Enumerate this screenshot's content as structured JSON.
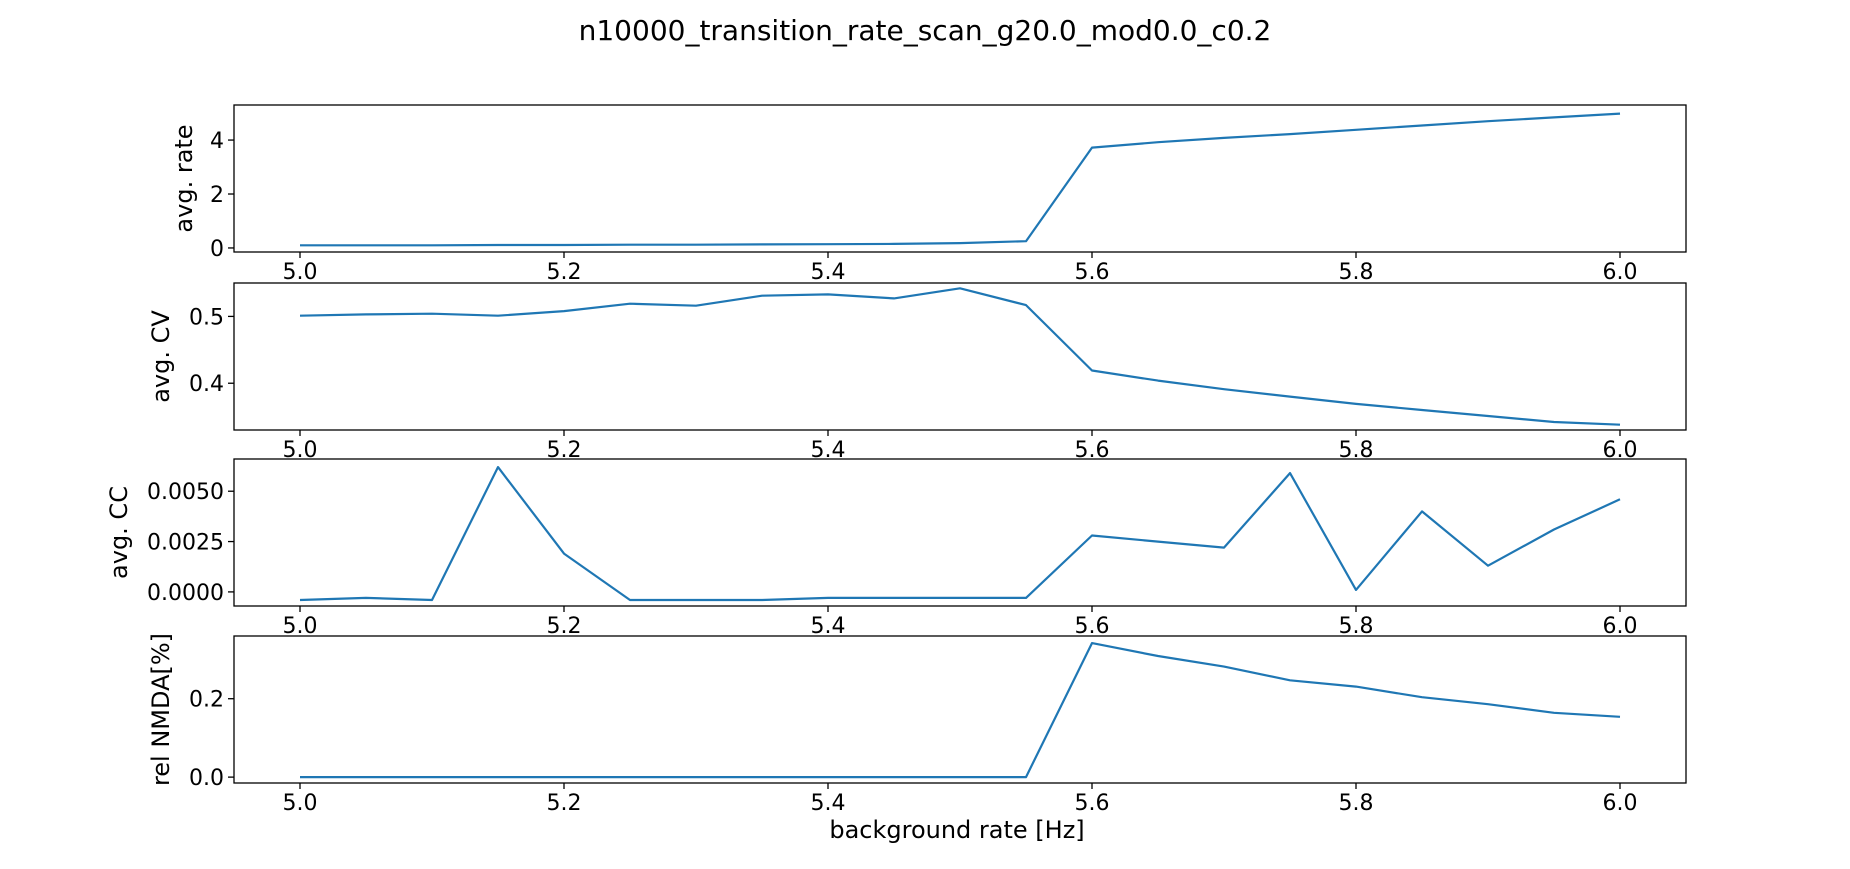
{
  "title": "n10000_transition_rate_scan_g20.0_mod0.0_c0.2",
  "xlabel": "background rate [Hz]",
  "colors": {
    "line": "#1f77b4",
    "axes": "#000000",
    "background": "#ffffff"
  },
  "chart_data": [
    {
      "type": "line",
      "ylabel": "avg. rate",
      "xlim": [
        4.95,
        6.05
      ],
      "ylim": [
        -0.15,
        5.3
      ],
      "grid": false,
      "xticks": [
        "5.0",
        "5.2",
        "5.4",
        "5.6",
        "5.8",
        "6.0"
      ],
      "yticks": [
        "0",
        "2",
        "4"
      ],
      "x": [
        5.0,
        5.05,
        5.1,
        5.15,
        5.2,
        5.25,
        5.3,
        5.35,
        5.4,
        5.45,
        5.5,
        5.55,
        5.6,
        5.65,
        5.7,
        5.75,
        5.8,
        5.85,
        5.9,
        5.95,
        6.0
      ],
      "y": [
        0.1,
        0.1,
        0.1,
        0.11,
        0.11,
        0.12,
        0.12,
        0.13,
        0.14,
        0.15,
        0.18,
        0.25,
        3.72,
        3.92,
        4.08,
        4.22,
        4.38,
        4.54,
        4.7,
        4.84,
        4.98
      ]
    },
    {
      "type": "line",
      "ylabel": "avg. CV",
      "xlim": [
        4.95,
        6.05
      ],
      "ylim": [
        0.33,
        0.55
      ],
      "grid": false,
      "xticks": [
        "5.0",
        "5.2",
        "5.4",
        "5.6",
        "5.8",
        "6.0"
      ],
      "yticks": [
        "0.4",
        "0.5"
      ],
      "x": [
        5.0,
        5.05,
        5.1,
        5.15,
        5.2,
        5.25,
        5.3,
        5.35,
        5.4,
        5.45,
        5.5,
        5.55,
        5.6,
        5.65,
        5.7,
        5.75,
        5.8,
        5.85,
        5.9,
        5.95,
        6.0
      ],
      "y": [
        0.501,
        0.503,
        0.504,
        0.501,
        0.508,
        0.519,
        0.516,
        0.531,
        0.533,
        0.527,
        0.542,
        0.517,
        0.419,
        0.404,
        0.391,
        0.38,
        0.369,
        0.36,
        0.351,
        0.342,
        0.338
      ]
    },
    {
      "type": "line",
      "ylabel": "avg. CC",
      "xlim": [
        4.95,
        6.05
      ],
      "ylim": [
        -0.0007,
        0.0066
      ],
      "grid": false,
      "xticks": [
        "5.0",
        "5.2",
        "5.4",
        "5.6",
        "5.8",
        "6.0"
      ],
      "yticks": [
        "0.0000",
        "0.0025",
        "0.0050"
      ],
      "x": [
        5.0,
        5.05,
        5.1,
        5.15,
        5.2,
        5.25,
        5.3,
        5.35,
        5.4,
        5.45,
        5.5,
        5.55,
        5.6,
        5.65,
        5.7,
        5.75,
        5.8,
        5.85,
        5.9,
        5.95,
        6.0
      ],
      "y": [
        -0.0004,
        -0.0003,
        -0.0004,
        0.0062,
        0.0019,
        -0.0004,
        -0.0004,
        -0.0004,
        -0.0003,
        -0.0003,
        -0.0003,
        -0.0003,
        0.0028,
        0.0025,
        0.0022,
        0.0059,
        0.0001,
        0.004,
        0.0013,
        0.0031,
        0.0046
      ]
    },
    {
      "type": "line",
      "ylabel": "rel NMDA[%]",
      "xlim": [
        4.95,
        6.05
      ],
      "ylim": [
        -0.015,
        0.36
      ],
      "grid": false,
      "xticks": [
        "5.0",
        "5.2",
        "5.4",
        "5.6",
        "5.8",
        "6.0"
      ],
      "yticks": [
        "0.0",
        "0.2"
      ],
      "x": [
        5.0,
        5.05,
        5.1,
        5.15,
        5.2,
        5.25,
        5.3,
        5.35,
        5.4,
        5.45,
        5.5,
        5.55,
        5.6,
        5.65,
        5.7,
        5.75,
        5.8,
        5.85,
        5.9,
        5.95,
        6.0
      ],
      "y": [
        0.0,
        0.0,
        0.0,
        0.0,
        0.0,
        0.0,
        0.0,
        0.0,
        0.0,
        0.0,
        0.0,
        0.0,
        0.342,
        0.309,
        0.282,
        0.247,
        0.231,
        0.204,
        0.186,
        0.164,
        0.154
      ]
    }
  ]
}
